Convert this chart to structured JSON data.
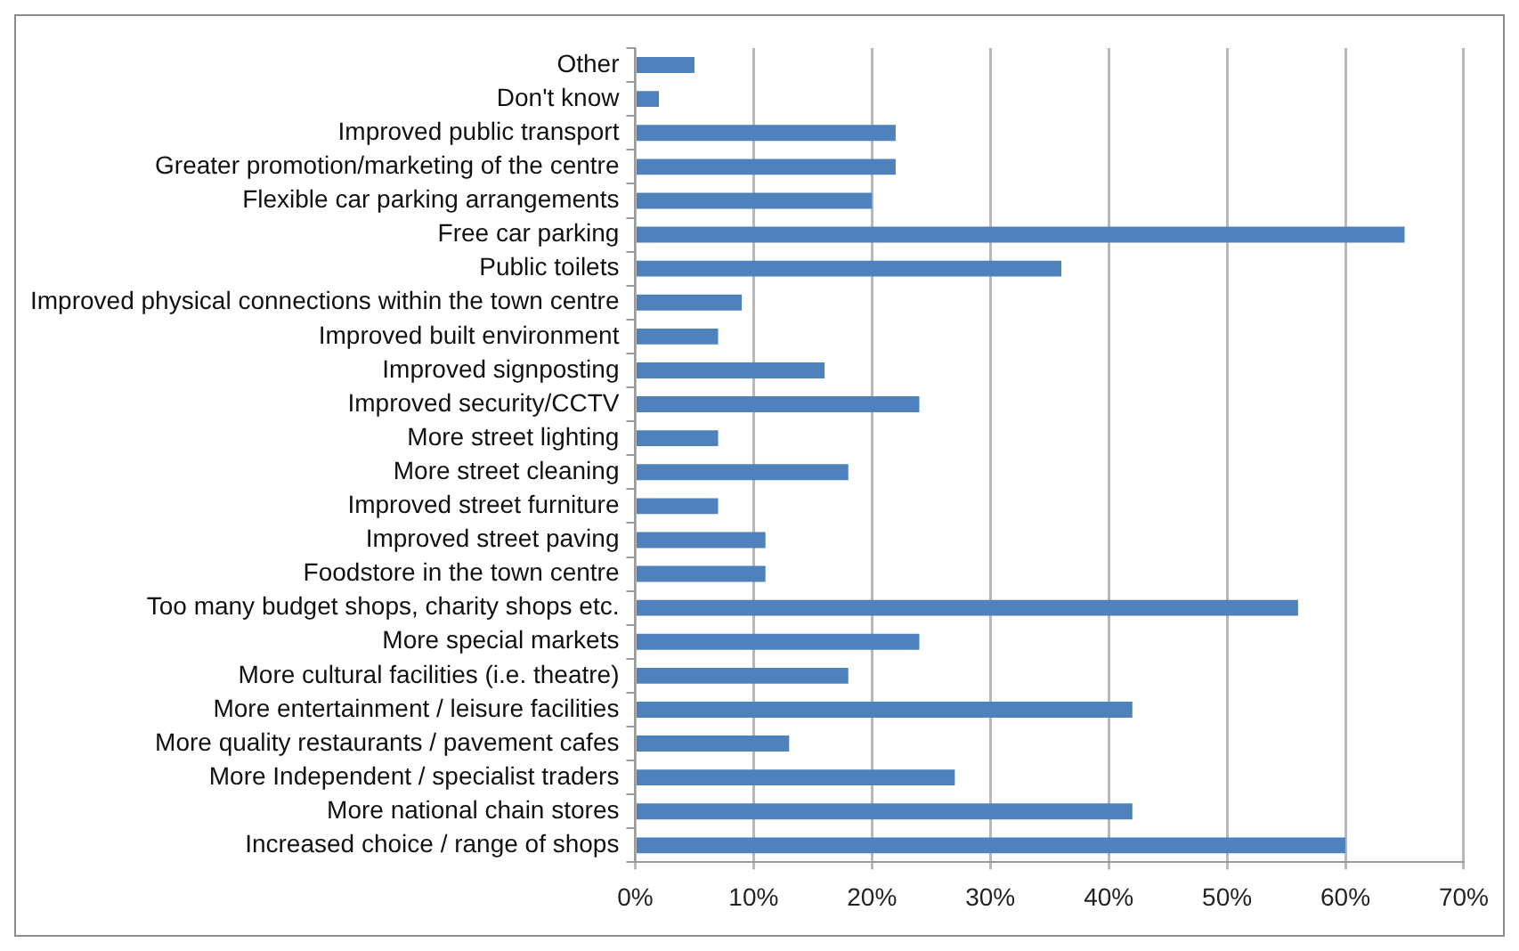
{
  "chart_data": {
    "type": "bar",
    "orientation": "horizontal",
    "categories": [
      "Other",
      "Don't know",
      "Improved public transport",
      "Greater promotion/marketing of the centre",
      "Flexible car parking arrangements",
      "Free car parking",
      "Public toilets",
      "Improved physical connections within the town centre",
      "Improved built environment",
      "Improved signposting",
      "Improved security/CCTV",
      "More street lighting",
      "More street cleaning",
      "Improved street furniture",
      "Improved street paving",
      "Foodstore in the town centre",
      "Too many budget shops, charity shops etc.",
      "More special markets",
      "More cultural facilities (i.e. theatre)",
      "More entertainment / leisure facilities",
      "More quality restaurants / pavement cafes",
      "More Independent / specialist traders",
      "More national chain stores",
      "Increased choice / range of shops"
    ],
    "values": [
      5,
      2,
      22,
      22,
      20,
      65,
      36,
      9,
      7,
      16,
      24,
      7,
      18,
      7,
      11,
      11,
      56,
      24,
      18,
      42,
      13,
      27,
      42,
      60
    ],
    "color": "#4f81bd",
    "xlim": [
      0,
      70
    ],
    "xticks": [
      {
        "value": 0,
        "label": "0%"
      },
      {
        "value": 10,
        "label": "10%"
      },
      {
        "value": 20,
        "label": "20%"
      },
      {
        "value": 30,
        "label": "30%"
      },
      {
        "value": 40,
        "label": "40%"
      },
      {
        "value": 50,
        "label": "50%"
      },
      {
        "value": 60,
        "label": "60%"
      },
      {
        "value": 70,
        "label": "70%"
      }
    ],
    "grid": "x",
    "legend": false
  }
}
